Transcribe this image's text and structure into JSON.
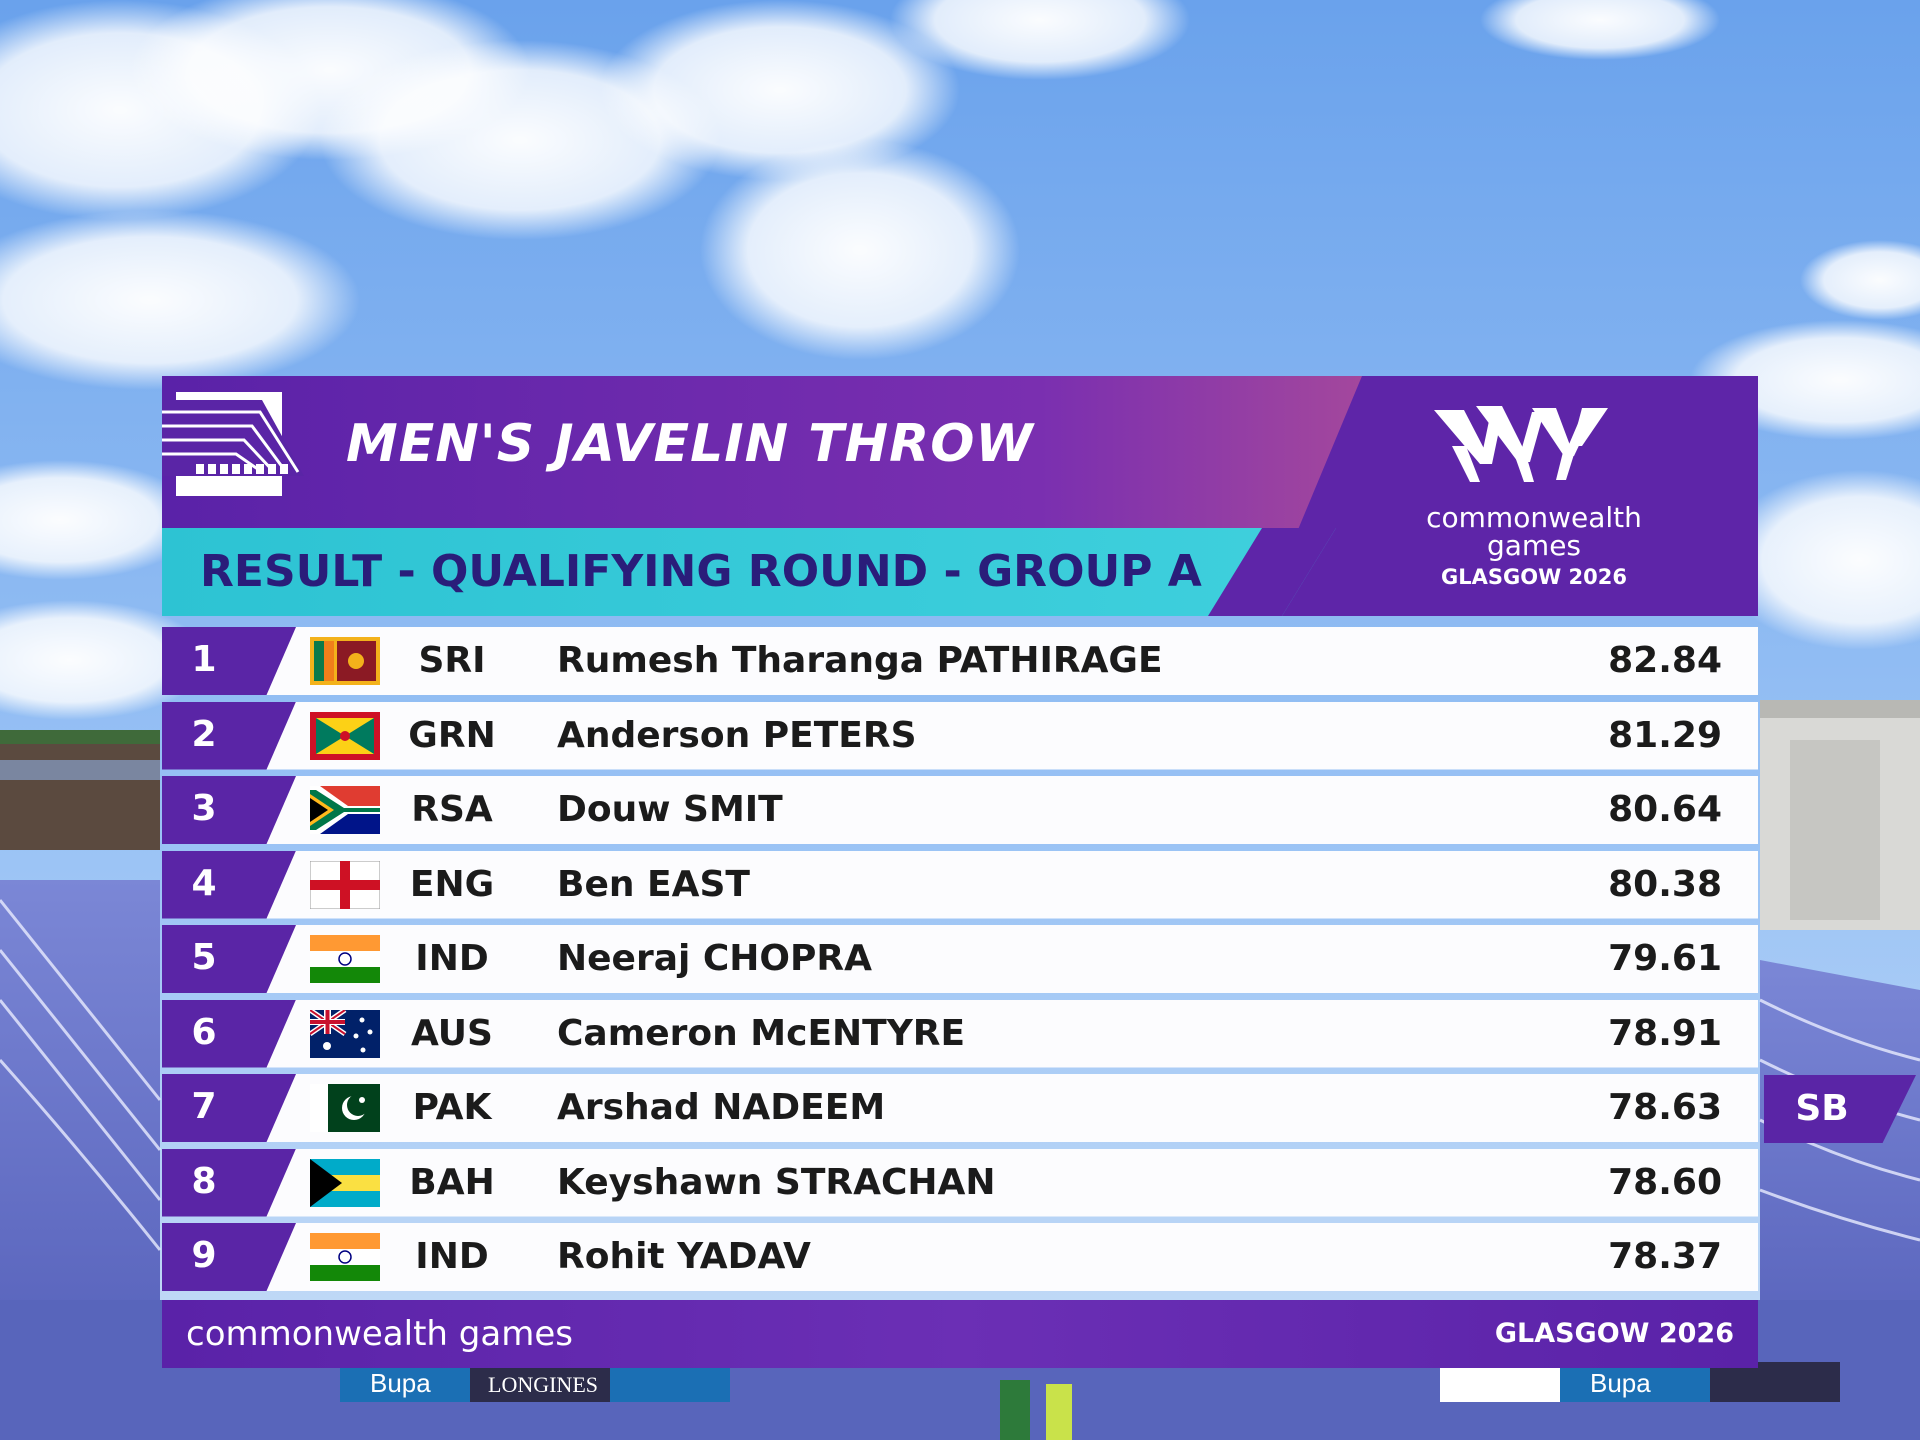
{
  "event": {
    "title": "MEN'S JAVELIN THROW",
    "subtitle": "RESULT - QUALIFYING ROUND - GROUP A"
  },
  "logo": {
    "line1": "commonwealth",
    "line2": "games",
    "line3": "GLASGOW 2026"
  },
  "results": [
    {
      "rank": "1",
      "code": "SRI",
      "name": "Rumesh Tharanga PATHIRAGE",
      "mark": "82.84"
    },
    {
      "rank": "2",
      "code": "GRN",
      "name": "Anderson PETERS",
      "mark": "81.29"
    },
    {
      "rank": "3",
      "code": "RSA",
      "name": "Douw SMIT",
      "mark": "80.64"
    },
    {
      "rank": "4",
      "code": "ENG",
      "name": "Ben EAST",
      "mark": "80.38"
    },
    {
      "rank": "5",
      "code": "IND",
      "name": "Neeraj CHOPRA",
      "mark": "79.61"
    },
    {
      "rank": "6",
      "code": "AUS",
      "name": "Cameron McENTYRE",
      "mark": "78.91"
    },
    {
      "rank": "7",
      "code": "PAK",
      "name": "Arshad NADEEM",
      "mark": "78.63"
    },
    {
      "rank": "8",
      "code": "BAH",
      "name": "Keyshawn STRACHAN",
      "mark": "78.60"
    },
    {
      "rank": "9",
      "code": "IND",
      "name": "Rohit YADAV",
      "mark": "78.37"
    }
  ],
  "sb_tag": "SB",
  "footer": {
    "left": "commonwealth games",
    "right": "GLASGOW 2026"
  },
  "background": {
    "sign_1": "Bupa",
    "sign_2": "LONGINES",
    "sign_3": "Bupa"
  },
  "colors": {
    "purple": "#5a25a6",
    "teal": "#34c7d3",
    "dark_text": "#2a1d7a",
    "sky": "#7fb0f0"
  }
}
